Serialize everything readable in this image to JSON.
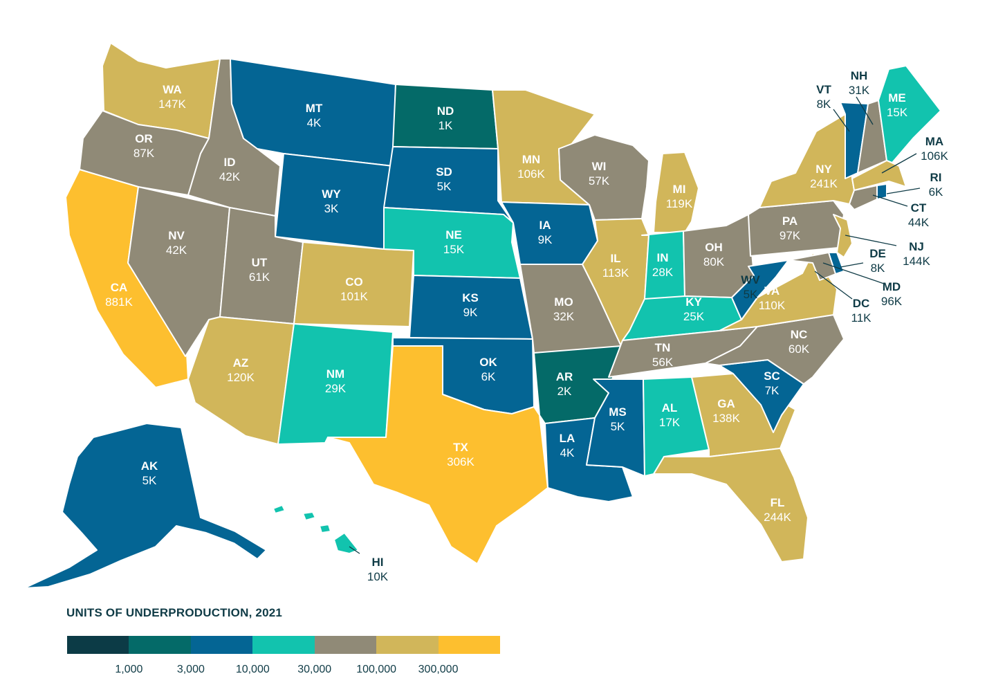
{
  "legend": {
    "title": "UNITS OF UNDERPRODUCTION, 2021",
    "bins": [
      "#0c3b46",
      "#046a68",
      "#046594",
      "#12c3ae",
      "#908a77",
      "#d1b65a",
      "#fdbf2f"
    ],
    "ticks": [
      "1,000",
      "3,000",
      "10,000",
      "30,000",
      "100,000",
      "300,000"
    ]
  },
  "states": [
    {
      "abbr": "WA",
      "value": "147K",
      "bin": 5
    },
    {
      "abbr": "OR",
      "value": "87K",
      "bin": 4
    },
    {
      "abbr": "CA",
      "value": "881K",
      "bin": 6
    },
    {
      "abbr": "ID",
      "value": "42K",
      "bin": 4
    },
    {
      "abbr": "NV",
      "value": "42K",
      "bin": 4
    },
    {
      "abbr": "MT",
      "value": "4K",
      "bin": 2
    },
    {
      "abbr": "WY",
      "value": "3K",
      "bin": 2
    },
    {
      "abbr": "UT",
      "value": "61K",
      "bin": 4
    },
    {
      "abbr": "AZ",
      "value": "120K",
      "bin": 5
    },
    {
      "abbr": "CO",
      "value": "101K",
      "bin": 5
    },
    {
      "abbr": "NM",
      "value": "29K",
      "bin": 3
    },
    {
      "abbr": "ND",
      "value": "1K",
      "bin": 1
    },
    {
      "abbr": "SD",
      "value": "5K",
      "bin": 2
    },
    {
      "abbr": "NE",
      "value": "15K",
      "bin": 3
    },
    {
      "abbr": "KS",
      "value": "9K",
      "bin": 2
    },
    {
      "abbr": "OK",
      "value": "6K",
      "bin": 2
    },
    {
      "abbr": "TX",
      "value": "306K",
      "bin": 6
    },
    {
      "abbr": "MN",
      "value": "106K",
      "bin": 5
    },
    {
      "abbr": "IA",
      "value": "9K",
      "bin": 2
    },
    {
      "abbr": "MO",
      "value": "32K",
      "bin": 4
    },
    {
      "abbr": "AR",
      "value": "2K",
      "bin": 1
    },
    {
      "abbr": "LA",
      "value": "4K",
      "bin": 2
    },
    {
      "abbr": "WI",
      "value": "57K",
      "bin": 4
    },
    {
      "abbr": "IL",
      "value": "113K",
      "bin": 5
    },
    {
      "abbr": "MI",
      "value": "119K",
      "bin": 5
    },
    {
      "abbr": "IN",
      "value": "28K",
      "bin": 3
    },
    {
      "abbr": "OH",
      "value": "80K",
      "bin": 4
    },
    {
      "abbr": "KY",
      "value": "25K",
      "bin": 3
    },
    {
      "abbr": "TN",
      "value": "56K",
      "bin": 4
    },
    {
      "abbr": "MS",
      "value": "5K",
      "bin": 2
    },
    {
      "abbr": "AL",
      "value": "17K",
      "bin": 3
    },
    {
      "abbr": "GA",
      "value": "138K",
      "bin": 5
    },
    {
      "abbr": "FL",
      "value": "244K",
      "bin": 5
    },
    {
      "abbr": "SC",
      "value": "7K",
      "bin": 2
    },
    {
      "abbr": "NC",
      "value": "60K",
      "bin": 4
    },
    {
      "abbr": "VA",
      "value": "110K",
      "bin": 5
    },
    {
      "abbr": "WV",
      "value": "5K",
      "bin": 2
    },
    {
      "abbr": "PA",
      "value": "97K",
      "bin": 4
    },
    {
      "abbr": "NY",
      "value": "241K",
      "bin": 5
    },
    {
      "abbr": "VT",
      "value": "8K",
      "bin": 2
    },
    {
      "abbr": "NH",
      "value": "31K",
      "bin": 4
    },
    {
      "abbr": "ME",
      "value": "15K",
      "bin": 3
    },
    {
      "abbr": "MA",
      "value": "106K",
      "bin": 5
    },
    {
      "abbr": "RI",
      "value": "6K",
      "bin": 2
    },
    {
      "abbr": "CT",
      "value": "44K",
      "bin": 4
    },
    {
      "abbr": "NJ",
      "value": "144K",
      "bin": 5
    },
    {
      "abbr": "DE",
      "value": "8K",
      "bin": 2
    },
    {
      "abbr": "MD",
      "value": "96K",
      "bin": 4
    },
    {
      "abbr": "DC",
      "value": "11K",
      "bin": 3
    },
    {
      "abbr": "AK",
      "value": "5K",
      "bin": 2
    },
    {
      "abbr": "HI",
      "value": "10K",
      "bin": 3
    }
  ]
}
